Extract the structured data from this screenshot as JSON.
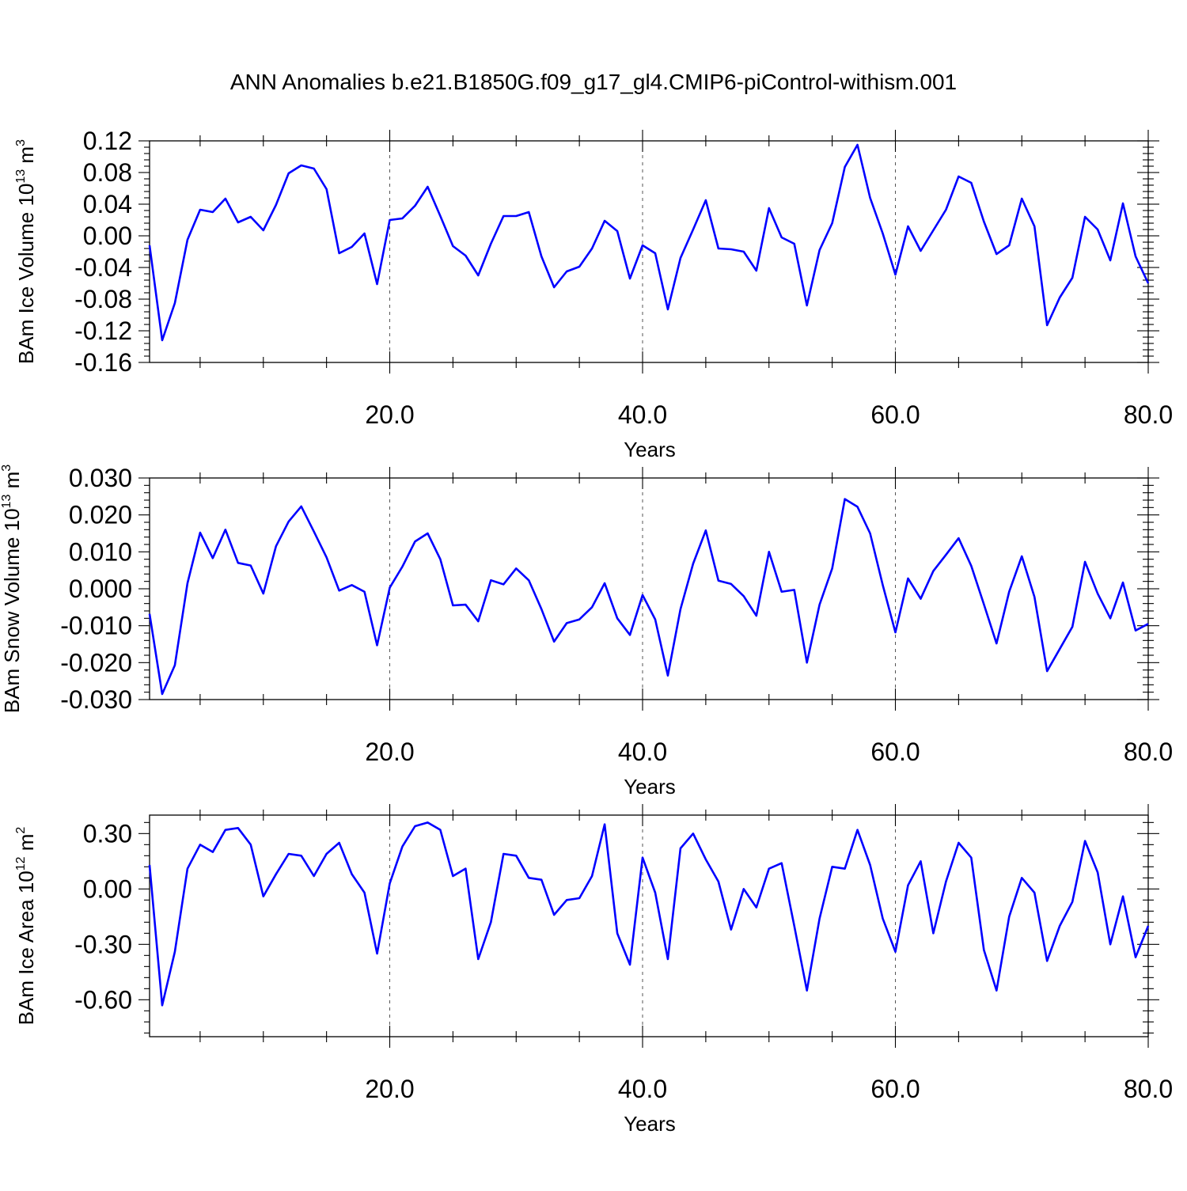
{
  "title": "ANN Anomalies b.e21.B1850G.f09_g17_gl4.CMIP6-piControl-withism.001",
  "colors": {
    "line": "#0000ff",
    "axis": "#000000",
    "grid": "#555555",
    "background": "#ffffff"
  },
  "chart_data": [
    {
      "type": "line",
      "ylabel": "BAm Ice Volume 10",
      "ylabel_exponent": "13",
      "ylabel_unit": "m",
      "ylabel_unit_exponent": "3",
      "xlabel": "Years",
      "xlim": [
        1,
        80
      ],
      "ylim": [
        -0.16,
        0.12
      ],
      "yticks": [
        0.12,
        0.08,
        0.04,
        0.0,
        -0.04,
        -0.08,
        -0.12,
        -0.16
      ],
      "ytick_labels": [
        "0.12",
        "0.08",
        "0.04",
        "0.00",
        "-0.04",
        "-0.08",
        "-0.12",
        "-0.16"
      ],
      "xticks": [
        20,
        40,
        60,
        80
      ],
      "xtick_labels": [
        "20.0",
        "40.0",
        "60.0",
        "80.0"
      ],
      "grid": "vertical dashed at x major ticks",
      "series": [
        {
          "x": [
            1,
            2,
            3,
            4,
            5,
            6,
            7,
            8,
            9,
            10,
            11,
            12,
            13,
            14,
            15,
            16,
            17,
            18,
            19,
            20,
            21,
            22,
            23,
            24,
            25,
            26,
            27,
            28,
            29,
            30,
            31,
            32,
            33,
            34,
            35,
            36,
            37,
            38,
            39,
            40,
            41,
            42,
            43,
            44,
            45,
            46,
            47,
            48,
            49,
            50,
            51,
            52,
            53,
            54,
            55,
            56,
            57,
            58,
            59,
            60,
            61,
            62,
            63,
            64,
            65,
            66,
            67,
            68,
            69,
            70,
            71,
            72,
            73,
            74,
            75,
            76,
            77,
            78,
            79,
            80
          ],
          "values": [
            -0.012,
            -0.132,
            -0.085,
            -0.005,
            0.033,
            0.03,
            0.047,
            0.017,
            0.024,
            0.007,
            0.039,
            0.079,
            0.089,
            0.085,
            0.059,
            -0.022,
            -0.014,
            0.003,
            -0.061,
            0.02,
            0.022,
            0.038,
            0.062,
            0.025,
            -0.013,
            -0.025,
            -0.05,
            -0.01,
            0.025,
            0.025,
            0.03,
            -0.026,
            -0.065,
            -0.045,
            -0.039,
            -0.016,
            0.019,
            0.006,
            -0.054,
            -0.012,
            -0.022,
            -0.093,
            -0.028,
            0.008,
            0.045,
            -0.016,
            -0.017,
            -0.02,
            -0.044,
            0.035,
            -0.002,
            -0.01,
            -0.088,
            -0.018,
            0.016,
            0.087,
            0.115,
            0.048,
            0.003,
            -0.049,
            0.012,
            -0.019,
            0.007,
            0.033,
            0.075,
            0.067,
            0.018,
            -0.023,
            -0.012,
            0.047,
            0.012,
            -0.113,
            -0.078,
            -0.053,
            0.024,
            0.008,
            -0.031,
            0.041,
            -0.026,
            -0.06
          ]
        }
      ]
    },
    {
      "type": "line",
      "ylabel": "BAm Snow Volume 10",
      "ylabel_exponent": "13",
      "ylabel_unit": "m",
      "ylabel_unit_exponent": "3",
      "xlabel": "Years",
      "xlim": [
        1,
        80
      ],
      "ylim": [
        -0.03,
        0.03
      ],
      "yticks": [
        0.03,
        0.02,
        0.01,
        0.0,
        -0.01,
        -0.02,
        -0.03
      ],
      "ytick_labels": [
        "0.030",
        "0.020",
        "0.010",
        "0.000",
        "-0.010",
        "-0.020",
        "-0.030"
      ],
      "xticks": [
        20,
        40,
        60,
        80
      ],
      "xtick_labels": [
        "20.0",
        "40.0",
        "60.0",
        "80.0"
      ],
      "grid": "vertical dashed at x major ticks",
      "series": [
        {
          "x": [
            1,
            2,
            3,
            4,
            5,
            6,
            7,
            8,
            9,
            10,
            11,
            12,
            13,
            14,
            15,
            16,
            17,
            18,
            19,
            20,
            21,
            22,
            23,
            24,
            25,
            26,
            27,
            28,
            29,
            30,
            31,
            32,
            33,
            34,
            35,
            36,
            37,
            38,
            39,
            40,
            41,
            42,
            43,
            44,
            45,
            46,
            47,
            48,
            49,
            50,
            51,
            52,
            53,
            54,
            55,
            56,
            57,
            58,
            59,
            60,
            61,
            62,
            63,
            64,
            65,
            66,
            67,
            68,
            69,
            70,
            71,
            72,
            73,
            74,
            75,
            76,
            77,
            78,
            79,
            80
          ],
          "values": [
            -0.0068,
            -0.0285,
            -0.0207,
            0.0015,
            0.0152,
            0.0083,
            0.016,
            0.007,
            0.0063,
            -0.0013,
            0.0115,
            0.0182,
            0.0223,
            0.0155,
            0.0085,
            -0.0005,
            0.001,
            -0.0008,
            -0.0153,
            0.0003,
            0.006,
            0.0128,
            0.015,
            0.008,
            -0.0045,
            -0.0043,
            -0.0088,
            0.0023,
            0.0012,
            0.0055,
            0.0023,
            -0.0055,
            -0.0143,
            -0.0093,
            -0.0083,
            -0.005,
            0.0015,
            -0.008,
            -0.0125,
            -0.0017,
            -0.0083,
            -0.0235,
            -0.0055,
            0.0068,
            0.0158,
            0.0022,
            0.0013,
            -0.002,
            -0.0073,
            0.01,
            -0.0008,
            -0.0003,
            -0.02,
            -0.0043,
            0.0055,
            0.0243,
            0.0222,
            0.015,
            0.001,
            -0.0118,
            0.0028,
            -0.0027,
            0.0048,
            0.0092,
            0.0137,
            0.0062,
            -0.0042,
            -0.0148,
            -0.0008,
            0.0088,
            -0.0022,
            -0.0223,
            -0.0163,
            -0.0103,
            0.0073,
            -0.0013,
            -0.008,
            0.0017,
            -0.0113,
            -0.0095
          ]
        }
      ]
    },
    {
      "type": "line",
      "ylabel": "BAm Ice Area 10",
      "ylabel_exponent": "12",
      "ylabel_unit": "m",
      "ylabel_unit_exponent": "2",
      "xlabel": "Years",
      "xlim": [
        1,
        80
      ],
      "ylim": [
        -0.8,
        0.4
      ],
      "yticks": [
        0.3,
        0.0,
        -0.3,
        -0.6
      ],
      "ytick_labels": [
        "0.30",
        "0.00",
        "-0.30",
        "-0.60"
      ],
      "xticks": [
        20,
        40,
        60,
        80
      ],
      "xtick_labels": [
        "20.0",
        "40.0",
        "60.0",
        "80.0"
      ],
      "grid": "vertical dashed at x major ticks",
      "series": [
        {
          "x": [
            1,
            2,
            3,
            4,
            5,
            6,
            7,
            8,
            9,
            10,
            11,
            12,
            13,
            14,
            15,
            16,
            17,
            18,
            19,
            20,
            21,
            22,
            23,
            24,
            25,
            26,
            27,
            28,
            29,
            30,
            31,
            32,
            33,
            34,
            35,
            36,
            37,
            38,
            39,
            40,
            41,
            42,
            43,
            44,
            45,
            46,
            47,
            48,
            49,
            50,
            51,
            52,
            53,
            54,
            55,
            56,
            57,
            58,
            59,
            60,
            61,
            62,
            63,
            64,
            65,
            66,
            67,
            68,
            69,
            70,
            71,
            72,
            73,
            74,
            75,
            76,
            77,
            78,
            79,
            80
          ],
          "values": [
            0.13,
            -0.63,
            -0.34,
            0.11,
            0.24,
            0.2,
            0.32,
            0.33,
            0.24,
            -0.04,
            0.08,
            0.19,
            0.18,
            0.07,
            0.19,
            0.25,
            0.08,
            -0.02,
            -0.35,
            0.03,
            0.23,
            0.34,
            0.36,
            0.32,
            0.07,
            0.11,
            -0.38,
            -0.18,
            0.19,
            0.18,
            0.06,
            0.05,
            -0.14,
            -0.06,
            -0.05,
            0.07,
            0.35,
            -0.24,
            -0.41,
            0.17,
            -0.02,
            -0.38,
            0.22,
            0.3,
            0.16,
            0.04,
            -0.22,
            0.0,
            -0.1,
            0.11,
            0.14,
            -0.2,
            -0.55,
            -0.16,
            0.12,
            0.11,
            0.32,
            0.13,
            -0.16,
            -0.34,
            0.02,
            0.15,
            -0.24,
            0.04,
            0.25,
            0.17,
            -0.33,
            -0.55,
            -0.15,
            0.06,
            -0.02,
            -0.39,
            -0.2,
            -0.07,
            0.26,
            0.09,
            -0.3,
            -0.04,
            -0.37,
            -0.2
          ]
        }
      ]
    }
  ]
}
